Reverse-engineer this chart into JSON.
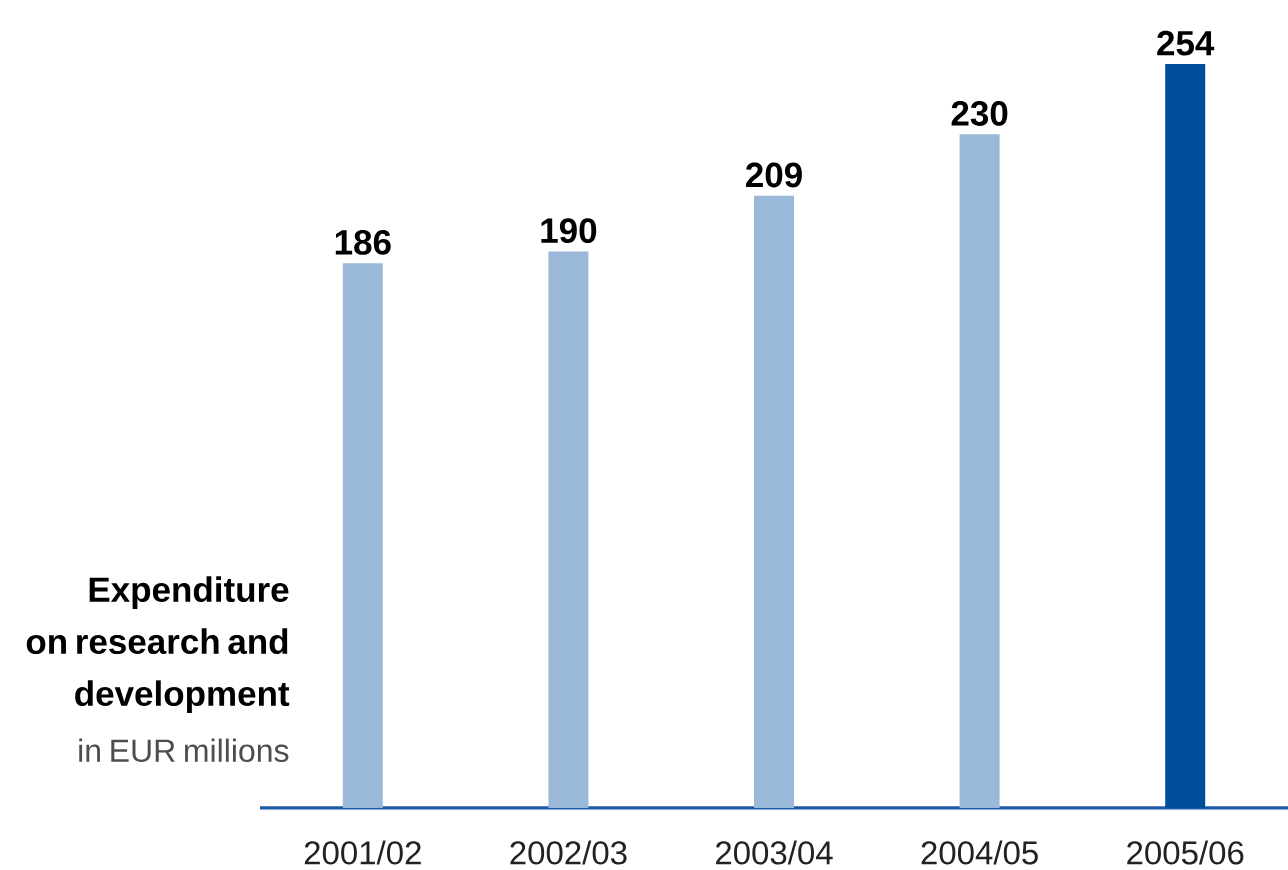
{
  "chart_data": {
    "type": "bar",
    "title": "Expenditure on research and development",
    "subtitle": "in EUR millions",
    "categories": [
      "2001/02",
      "2002/03",
      "2003/04",
      "2004/05",
      "2005/06"
    ],
    "values": [
      186,
      190,
      209,
      230,
      254
    ],
    "colors": [
      "#9ab8d8",
      "#9ab8d8",
      "#9ab8d8",
      "#9ab8d8",
      "#004f9d"
    ],
    "data_labels": true
  }
}
